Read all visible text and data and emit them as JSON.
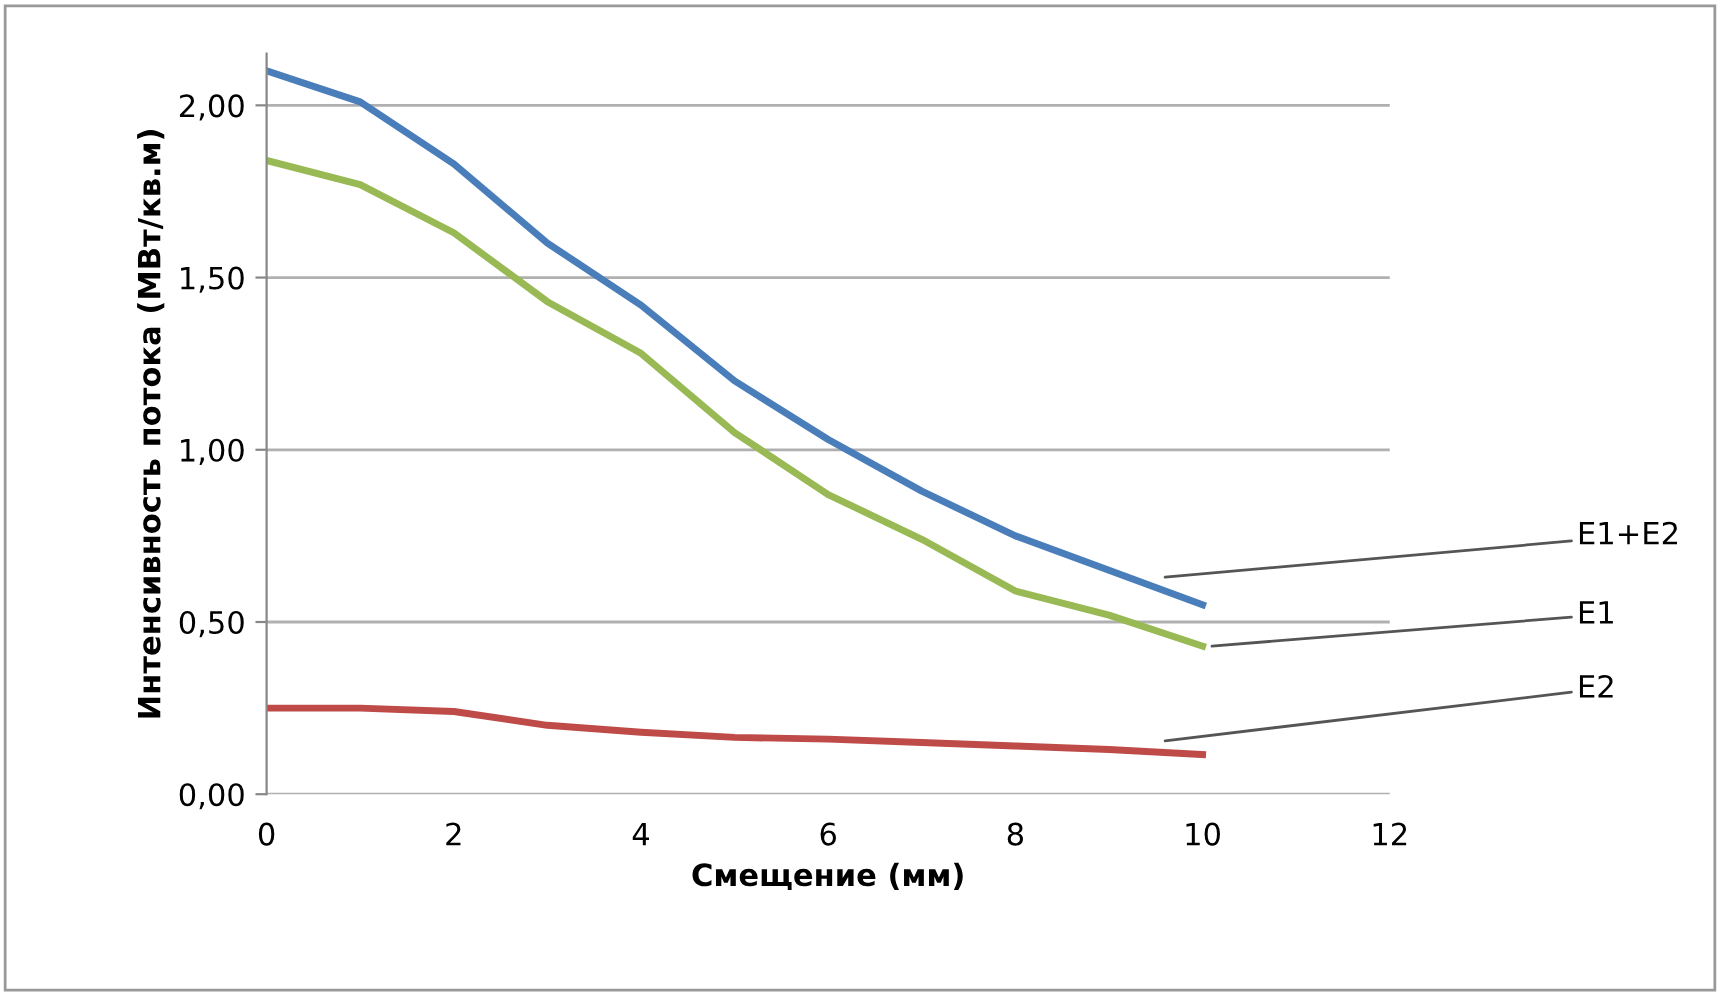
{
  "chart_data": {
    "type": "line",
    "xlabel": "Смещение (мм)",
    "ylabel": "Интенсивность потока (МВт/кв.м)",
    "x": [
      0,
      1,
      2,
      3,
      4,
      5,
      6,
      7,
      8,
      9,
      10
    ],
    "series": [
      {
        "name": "E1+E2",
        "color": "#4a7ebb",
        "values": [
          2.1,
          2.01,
          1.83,
          1.6,
          1.42,
          1.2,
          1.03,
          0.88,
          0.75,
          0.65,
          0.55
        ]
      },
      {
        "name": "E1",
        "color": "#98b954",
        "values": [
          1.84,
          1.77,
          1.63,
          1.43,
          1.28,
          1.05,
          0.87,
          0.74,
          0.59,
          0.52,
          0.43
        ]
      },
      {
        "name": "E2",
        "color": "#be4b48",
        "values": [
          0.25,
          0.25,
          0.24,
          0.2,
          0.18,
          0.165,
          0.16,
          0.15,
          0.14,
          0.13,
          0.115
        ]
      }
    ],
    "xlim": [
      0,
      12
    ],
    "xticks": [
      0,
      2,
      4,
      6,
      8,
      10,
      12
    ],
    "ylim": [
      0,
      2.15
    ],
    "yticks": [
      {
        "value": 0,
        "label": "0,00"
      },
      {
        "value": 0.5,
        "label": "0,50"
      },
      {
        "value": 1,
        "label": "1,00"
      },
      {
        "value": 1.5,
        "label": "1,50"
      },
      {
        "value": 2,
        "label": "2,00"
      }
    ],
    "grid": "y",
    "legend": false,
    "marker": "none",
    "line_style": "solid"
  }
}
